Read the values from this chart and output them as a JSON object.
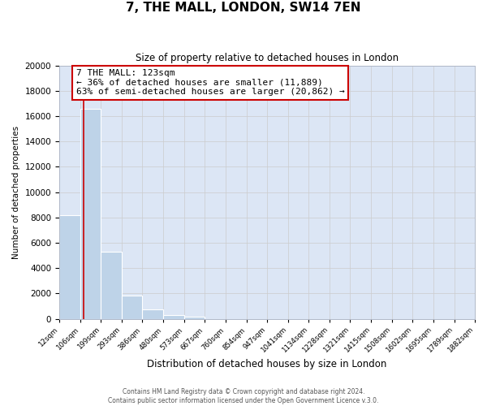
{
  "title": "7, THE MALL, LONDON, SW14 7EN",
  "subtitle": "Size of property relative to detached houses in London",
  "xlabel": "Distribution of detached houses by size in London",
  "ylabel": "Number of detached properties",
  "bar_edges": [
    12,
    106,
    199,
    293,
    386,
    480,
    573,
    667,
    760,
    854,
    947,
    1041,
    1134,
    1228,
    1321,
    1415,
    1508,
    1602,
    1695,
    1789,
    1882
  ],
  "bar_values": [
    8200,
    16600,
    5300,
    1800,
    750,
    280,
    170,
    0,
    0,
    0,
    0,
    0,
    0,
    0,
    0,
    0,
    0,
    0,
    0,
    0
  ],
  "bar_color": "#bed3e8",
  "property_line_x": 123,
  "property_line_color": "#cc0000",
  "annotation_line1": "7 THE MALL: 123sqm",
  "annotation_line2": "← 36% of detached houses are smaller (11,889)",
  "annotation_line3": "63% of semi-detached houses are larger (20,862) →",
  "annotation_box_color": "#ffffff",
  "annotation_box_edgecolor": "#cc0000",
  "ylim": [
    0,
    20000
  ],
  "yticks": [
    0,
    2000,
    4000,
    6000,
    8000,
    10000,
    12000,
    14000,
    16000,
    18000,
    20000
  ],
  "tick_labels": [
    "12sqm",
    "106sqm",
    "199sqm",
    "293sqm",
    "386sqm",
    "480sqm",
    "573sqm",
    "667sqm",
    "760sqm",
    "854sqm",
    "947sqm",
    "1041sqm",
    "1134sqm",
    "1228sqm",
    "1321sqm",
    "1415sqm",
    "1508sqm",
    "1602sqm",
    "1695sqm",
    "1789sqm",
    "1882sqm"
  ],
  "footer_line1": "Contains HM Land Registry data © Crown copyright and database right 2024.",
  "footer_line2": "Contains public sector information licensed under the Open Government Licence v.3.0.",
  "grid_color": "#cccccc",
  "fig_bg_color": "#ffffff",
  "ax_bg_color": "#dce6f5"
}
